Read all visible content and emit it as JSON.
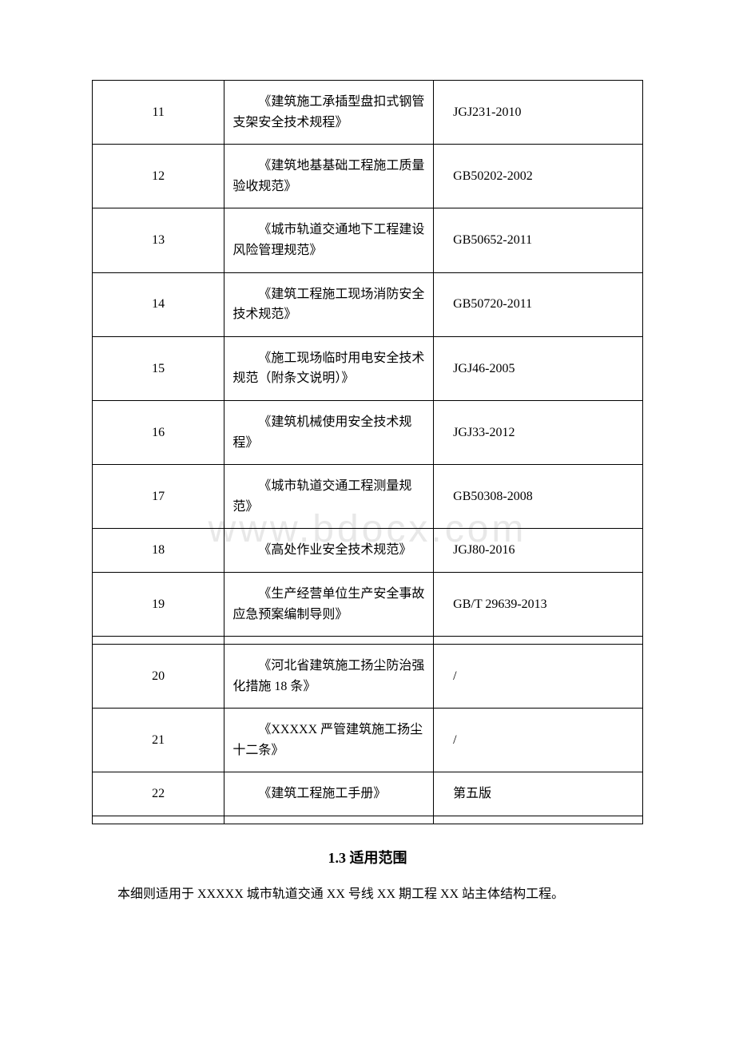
{
  "watermark_text": "www.bdocx.com",
  "table": {
    "border_color": "#000000",
    "text_color": "#000000",
    "background_color": "#ffffff",
    "col_widths_pct": [
      24,
      38,
      38
    ],
    "rows": [
      {
        "num": "11",
        "title": "《建筑施工承插型盘扣式钢管支架安全技术规程》",
        "code": "JGJ231-2010"
      },
      {
        "num": "12",
        "title": "《建筑地基基础工程施工质量验收规范》",
        "code": "GB50202-2002"
      },
      {
        "num": "13",
        "title": "《城市轨道交通地下工程建设风险管理规范》",
        "code": "GB50652-2011"
      },
      {
        "num": "14",
        "title": "《建筑工程施工现场消防安全技术规范》",
        "code": "GB50720-2011"
      },
      {
        "num": "15",
        "title": "《施工现场临时用电安全技术规范（附条文说明）》",
        "code": "JGJ46-2005"
      },
      {
        "num": "16",
        "title": "《建筑机械使用安全技术规程》",
        "code": "JGJ33-2012"
      },
      {
        "num": "17",
        "title": "《城市轨道交通工程测量规范》",
        "code": "GB50308-2008"
      },
      {
        "num": "18",
        "title": "《高处作业安全技术规范》",
        "code": "JGJ80-2016"
      },
      {
        "num": "19",
        "title": "《生产经营单位生产安全事故应急预案编制导则》",
        "code": "GB/T 29639-2013"
      },
      {
        "spacer": true
      },
      {
        "num": "20",
        "title": "《河北省建筑施工扬尘防治强化措施 18 条》",
        "code": "/"
      },
      {
        "num": "21",
        "title": "《XXXXX 严管建筑施工扬尘十二条》",
        "code": "/"
      },
      {
        "num": "22",
        "title": "《建筑工程施工手册》",
        "code": "第五版"
      },
      {
        "spacer": true
      }
    ]
  },
  "section": {
    "heading": "1.3 适用范围",
    "body": "本细则适用于 XXXXX 城市轨道交通 XX 号线 XX 期工程 XX 站主体结构工程。"
  }
}
